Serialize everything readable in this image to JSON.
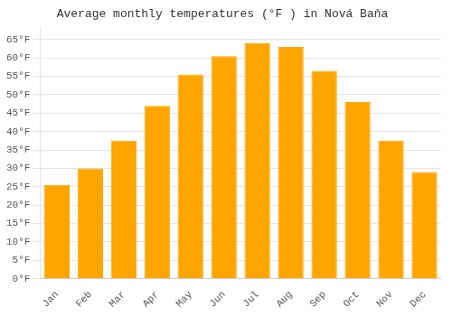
{
  "chart_data": {
    "type": "bar",
    "title": "Average monthly temperatures (°F ) in Nová Baňa",
    "categories": [
      "Jan",
      "Feb",
      "Mar",
      "Apr",
      "May",
      "Jun",
      "Jul",
      "Aug",
      "Sep",
      "Oct",
      "Nov",
      "Dec"
    ],
    "values": [
      25.5,
      30.0,
      37.5,
      47.0,
      55.5,
      60.5,
      64.0,
      63.0,
      56.5,
      48.0,
      37.5,
      29.0
    ],
    "color": "#FFA500",
    "ylim": [
      0,
      68
    ],
    "yticks": [
      {
        "value": 0,
        "label": "0°F"
      },
      {
        "value": 5,
        "label": "5°F"
      },
      {
        "value": 10,
        "label": "10°F"
      },
      {
        "value": 15,
        "label": "15°F"
      },
      {
        "value": 20,
        "label": "20°F"
      },
      {
        "value": 25,
        "label": "25°F"
      },
      {
        "value": 30,
        "label": "30°F"
      },
      {
        "value": 35,
        "label": "35°F"
      },
      {
        "value": 40,
        "label": "40°F"
      },
      {
        "value": 45,
        "label": "45°F"
      },
      {
        "value": 50,
        "label": "50°F"
      },
      {
        "value": 55,
        "label": "55°F"
      },
      {
        "value": 60,
        "label": "60°F"
      },
      {
        "value": 65,
        "label": "65°F"
      }
    ],
    "grid": true
  }
}
